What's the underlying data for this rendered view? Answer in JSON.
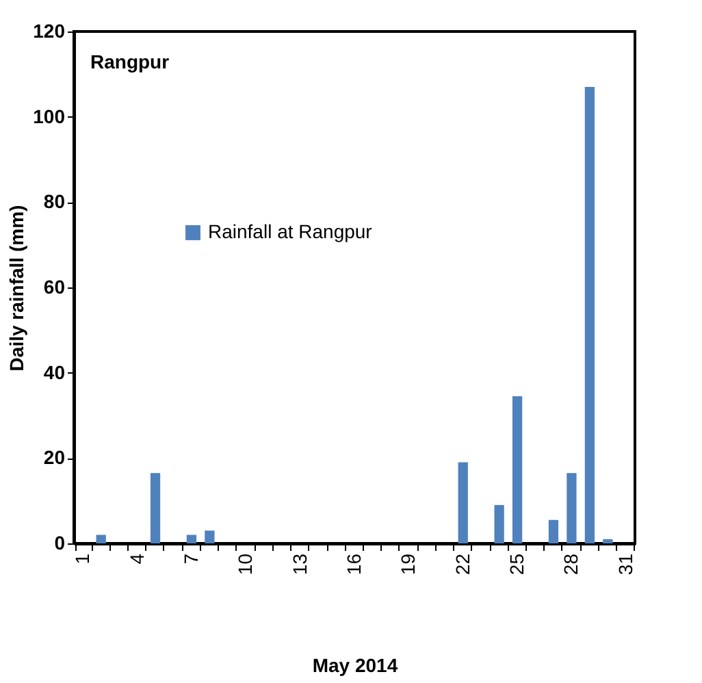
{
  "chart_data": {
    "type": "bar",
    "xlabel": "May  2014",
    "ylabel": "Daily rainfall (mm)",
    "categories": [
      "1",
      null,
      null,
      "4",
      null,
      null,
      "7",
      null,
      null,
      "10",
      null,
      null,
      "13",
      null,
      null,
      "16",
      null,
      null,
      "19",
      null,
      null,
      "22",
      null,
      null,
      "25",
      null,
      null,
      "28",
      null,
      null,
      "31"
    ],
    "series": [
      {
        "name": "Rainfall  at Rangpur",
        "color": "#4f81bd",
        "values": [
          0,
          2,
          0,
          0,
          16.5,
          0,
          2,
          3,
          0,
          0,
          0,
          0,
          0,
          0,
          0,
          0,
          0,
          0,
          0,
          0,
          0,
          19,
          0,
          9,
          34.5,
          0,
          5.5,
          16.5,
          107,
          1,
          0
        ]
      }
    ],
    "ylim": [
      0,
      120
    ],
    "yticks": [
      0,
      20,
      40,
      60,
      80,
      100,
      120
    ],
    "grid": false,
    "legend": "center",
    "annotations": [
      "Rangpur"
    ]
  }
}
